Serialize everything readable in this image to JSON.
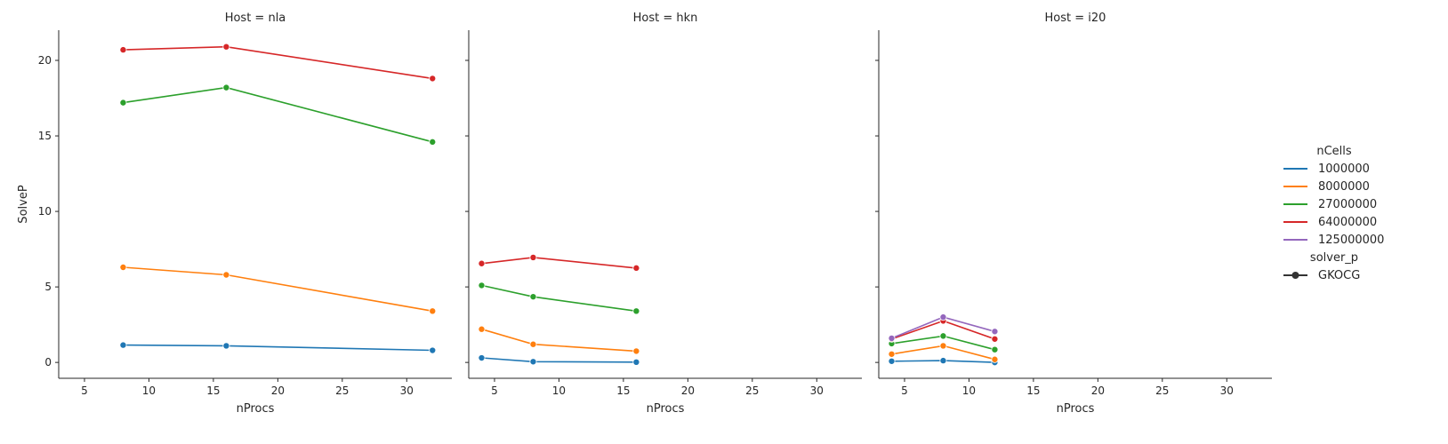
{
  "chart_data": {
    "type": "line",
    "xlabel": "nProcs",
    "ylabel": "SolveP",
    "xlim": [
      3,
      33.5
    ],
    "ylim": [
      -1.05,
      22
    ],
    "xticks": [
      5,
      10,
      15,
      20,
      25,
      30
    ],
    "yticks": [
      0,
      5,
      10,
      15,
      20
    ],
    "grid": false,
    "legend": {
      "placement": "right",
      "title": "nCells",
      "entries": [
        {
          "label": "1000000",
          "color": "#1f77b4"
        },
        {
          "label": "8000000",
          "color": "#ff7f0e"
        },
        {
          "label": "27000000",
          "color": "#2ca02c"
        },
        {
          "label": "64000000",
          "color": "#d62728"
        },
        {
          "label": "125000000",
          "color": "#9467bd"
        }
      ],
      "style_title": "solver_p",
      "style_entries": [
        {
          "label": "GKOCG",
          "color": "#333333"
        }
      ]
    },
    "facets": [
      {
        "title": "Host = nla",
        "series": [
          {
            "name": "1000000",
            "color": "#1f77b4",
            "x": [
              8,
              16,
              32
            ],
            "y": [
              1.15,
              1.1,
              0.8
            ]
          },
          {
            "name": "8000000",
            "color": "#ff7f0e",
            "x": [
              8,
              16,
              32
            ],
            "y": [
              6.3,
              5.8,
              3.4
            ]
          },
          {
            "name": "27000000",
            "color": "#2ca02c",
            "x": [
              8,
              16,
              32
            ],
            "y": [
              17.2,
              18.2,
              14.6
            ]
          },
          {
            "name": "64000000",
            "color": "#d62728",
            "x": [
              8,
              16,
              32
            ],
            "y": [
              20.7,
              20.9,
              18.8
            ]
          }
        ]
      },
      {
        "title": "Host = hkn",
        "series": [
          {
            "name": "1000000",
            "color": "#1f77b4",
            "x": [
              4,
              8,
              16
            ],
            "y": [
              0.3,
              0.05,
              0.02
            ]
          },
          {
            "name": "8000000",
            "color": "#ff7f0e",
            "x": [
              4,
              8,
              16
            ],
            "y": [
              2.2,
              1.2,
              0.75
            ]
          },
          {
            "name": "27000000",
            "color": "#2ca02c",
            "x": [
              4,
              8,
              16
            ],
            "y": [
              5.1,
              4.35,
              3.4
            ]
          },
          {
            "name": "64000000",
            "color": "#d62728",
            "x": [
              4,
              8,
              16
            ],
            "y": [
              6.55,
              6.95,
              6.25
            ]
          }
        ]
      },
      {
        "title": "Host = i20",
        "series": [
          {
            "name": "1000000",
            "color": "#1f77b4",
            "x": [
              4,
              8,
              12
            ],
            "y": [
              0.08,
              0.12,
              0.0
            ]
          },
          {
            "name": "8000000",
            "color": "#ff7f0e",
            "x": [
              4,
              8,
              12
            ],
            "y": [
              0.55,
              1.1,
              0.2
            ]
          },
          {
            "name": "27000000",
            "color": "#2ca02c",
            "x": [
              4,
              8,
              12
            ],
            "y": [
              1.25,
              1.75,
              0.85
            ]
          },
          {
            "name": "64000000",
            "color": "#d62728",
            "x": [
              4,
              8,
              12
            ],
            "y": [
              1.55,
              2.75,
              1.55
            ]
          },
          {
            "name": "125000000",
            "color": "#9467bd",
            "x": [
              4,
              8,
              12
            ],
            "y": [
              1.6,
              3.0,
              2.05
            ]
          }
        ]
      }
    ]
  }
}
